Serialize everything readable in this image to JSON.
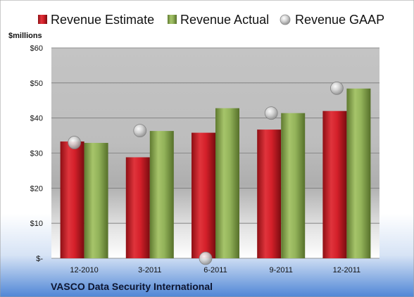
{
  "chart_data": {
    "type": "bar",
    "ylabel": "$millions",
    "company": "VASCO Data Security International",
    "categories": [
      "12-2010",
      "3-2011",
      "6-2011",
      "9-2011",
      "12-2011"
    ],
    "series": [
      {
        "name": "Revenue Estimate",
        "type": "bar",
        "color": "#d4202a",
        "values": [
          33.3,
          28.8,
          35.8,
          36.7,
          42.0
        ]
      },
      {
        "name": "Revenue Actual",
        "type": "bar",
        "color": "#93b35a",
        "values": [
          32.9,
          36.3,
          42.8,
          41.4,
          48.4
        ]
      },
      {
        "name": "Revenue GAAP",
        "type": "scatter",
        "color": "#bfbfbf",
        "values": [
          33.0,
          36.4,
          0,
          41.4,
          48.5
        ]
      }
    ],
    "ylim": [
      0,
      60
    ],
    "yticks": [
      0,
      10,
      20,
      30,
      40,
      50,
      60
    ],
    "ytick_labels": [
      "$-",
      "$10",
      "$20",
      "$30",
      "$40",
      "$50",
      "$60"
    ],
    "legend_position": "top",
    "grid": true
  }
}
